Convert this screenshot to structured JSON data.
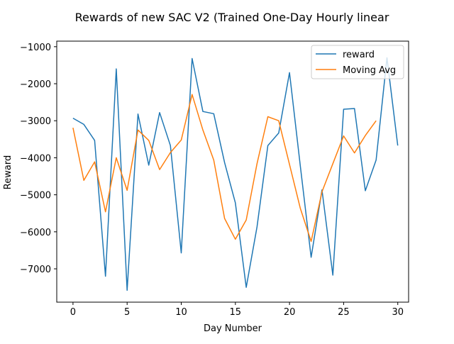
{
  "chart_data": {
    "type": "line",
    "title": "Rewards of new SAC V2 (Trained One-Day Hourly linear",
    "xlabel": "Day Number",
    "ylabel": "Reward",
    "xlim": [
      -1.5,
      31.0
    ],
    "ylim": [
      -7900,
      -850
    ],
    "x_ticks": [
      0,
      5,
      10,
      15,
      20,
      25,
      30
    ],
    "y_ticks": [
      -7000,
      -6000,
      -5000,
      -4000,
      -3000,
      -2000,
      -1000
    ],
    "x_tick_labels": [
      "0",
      "5",
      "10",
      "15",
      "20",
      "25",
      "30"
    ],
    "y_tick_labels": [
      "−7000",
      "−6000",
      "−5000",
      "−4000",
      "−3000",
      "−2000",
      "−1000"
    ],
    "grid": false,
    "legend_position": "top-right",
    "series": [
      {
        "name": "reward",
        "color": "#1f77b4",
        "x": [
          0,
          1,
          2,
          3,
          4,
          5,
          6,
          7,
          8,
          9,
          10,
          11,
          12,
          13,
          14,
          15,
          16,
          17,
          18,
          19,
          20,
          21,
          22,
          23,
          24,
          25,
          26,
          27,
          28,
          29,
          30
        ],
        "values": [
          -2930,
          -3100,
          -3530,
          -7200,
          -1600,
          -7580,
          -2820,
          -4200,
          -2780,
          -3670,
          -6570,
          -1320,
          -2750,
          -2810,
          -4130,
          -5220,
          -7500,
          -5870,
          -3670,
          -3330,
          -1700,
          -4230,
          -6690,
          -4870,
          -7170,
          -2690,
          -2670,
          -4890,
          -4060,
          -1300,
          -3670
        ]
      },
      {
        "name": "Moving Avg",
        "color": "#ff7f0e",
        "x": [
          0,
          1,
          2,
          3,
          4,
          5,
          6,
          7,
          8,
          9,
          10,
          11,
          12,
          13,
          14,
          15,
          16,
          17,
          18,
          19,
          20,
          21,
          22,
          23,
          24,
          25,
          26,
          27,
          28
        ],
        "values": [
          -3190,
          -4610,
          -4110,
          -5460,
          -4000,
          -4880,
          -3250,
          -3530,
          -4320,
          -3860,
          -3520,
          -2290,
          -3250,
          -4060,
          -5640,
          -6200,
          -5680,
          -4160,
          -2890,
          -3000,
          -4180,
          -5370,
          -6260,
          -4920,
          -4160,
          -3410,
          -3870,
          -3400,
          -3000
        ]
      }
    ]
  }
}
